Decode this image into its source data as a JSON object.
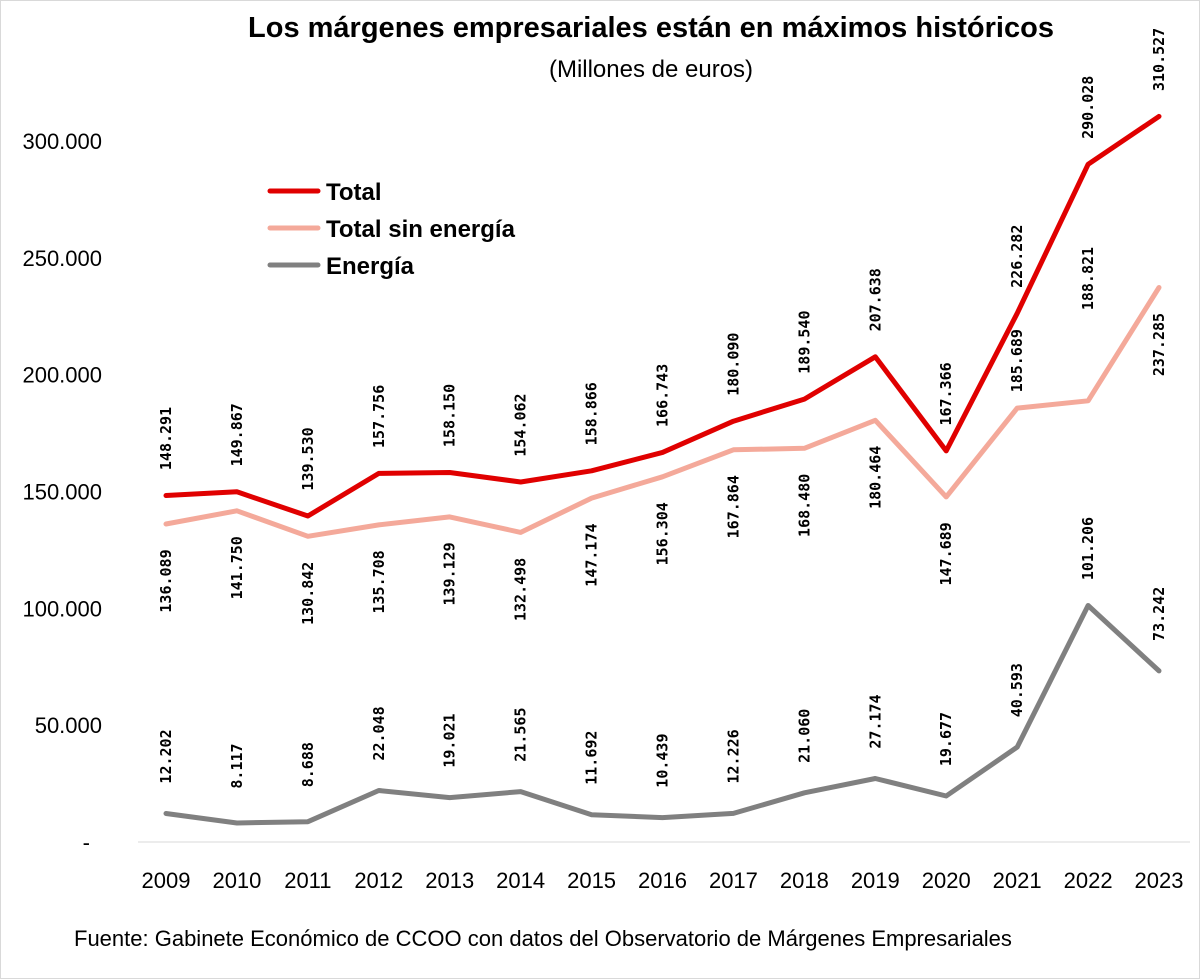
{
  "chart_data": {
    "type": "line",
    "title": "Los márgenes empresariales están en máximos históricos",
    "subtitle": "(Millones de euros)",
    "source": "Fuente: Gabinete Económico de CCOO con datos del Observatorio de Márgenes Empresariales",
    "x": [
      "2009",
      "2010",
      "2011",
      "2012",
      "2013",
      "2014",
      "2015",
      "2016",
      "2017",
      "2018",
      "2019",
      "2020",
      "2021",
      "2022",
      "2023"
    ],
    "ylim": [
      0,
      300000
    ],
    "yticks": [
      0,
      50000,
      100000,
      150000,
      200000,
      250000,
      300000
    ],
    "ytick_labels": [
      "-",
      "50.000",
      "100.000",
      "150.000",
      "200.000",
      "250.000",
      "300.000"
    ],
    "grid": false,
    "legend": "top-left",
    "series": [
      {
        "name": "Total",
        "color": "#e00000",
        "values": [
          148291,
          149867,
          139530,
          157756,
          158150,
          154062,
          158866,
          166743,
          180090,
          189540,
          207638,
          167366,
          226282,
          290028,
          310527
        ],
        "labels": [
          "148.291",
          "149.867",
          "139.530",
          "157.756",
          "158.150",
          "154.062",
          "158.866",
          "166.743",
          "180.090",
          "189.540",
          "207.638",
          "167.366",
          "226.282",
          "290.028",
          "310.527"
        ]
      },
      {
        "name": "Total sin energía",
        "color": "#f4a99a",
        "values": [
          136089,
          141750,
          130842,
          135708,
          139129,
          132498,
          147174,
          156304,
          167864,
          168480,
          180464,
          147689,
          185689,
          188821,
          237285
        ],
        "labels": [
          "136.089",
          "141.750",
          "130.842",
          "135.708",
          "139.129",
          "132.498",
          "147.174",
          "156.304",
          "167.864",
          "168.480",
          "180.464",
          "147.689",
          "185.689",
          "188.821",
          "237.285"
        ]
      },
      {
        "name": "Energía",
        "color": "#808080",
        "values": [
          12202,
          8117,
          8688,
          22048,
          19021,
          21565,
          11692,
          10439,
          12226,
          21060,
          27174,
          19677,
          40593,
          101206,
          73242
        ],
        "labels": [
          "12.202",
          "8.117",
          "8.688",
          "22.048",
          "19.021",
          "21.565",
          "11.692",
          "10.439",
          "12.226",
          "21.060",
          "27.174",
          "19.677",
          "40.593",
          "101.206",
          "73.242"
        ]
      }
    ]
  }
}
